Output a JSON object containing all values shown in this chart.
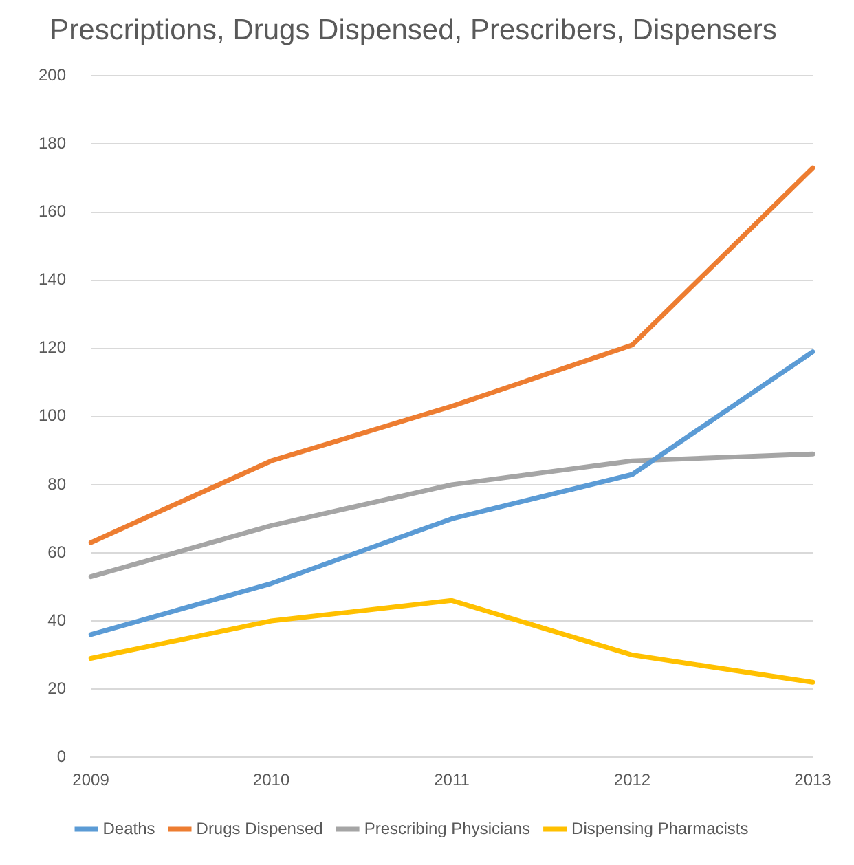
{
  "chart_data": {
    "type": "line",
    "title": "Prescriptions, Drugs Dispensed, Prescribers, Dispensers",
    "categories": [
      "2009",
      "2010",
      "2011",
      "2012",
      "2013"
    ],
    "series": [
      {
        "name": "Deaths",
        "color": "#5b9bd5",
        "values": [
          36,
          51,
          70,
          83,
          119
        ]
      },
      {
        "name": "Drugs Dispensed",
        "color": "#ed7d31",
        "values": [
          63,
          87,
          103,
          121,
          173
        ]
      },
      {
        "name": "Prescribing Physicians",
        "color": "#a5a5a5",
        "values": [
          53,
          68,
          80,
          87,
          89
        ]
      },
      {
        "name": "Dispensing Pharmacists",
        "color": "#ffc000",
        "values": [
          29,
          40,
          46,
          30,
          22
        ]
      }
    ],
    "ylim": [
      0,
      200
    ],
    "yticks": [
      0,
      20,
      40,
      60,
      80,
      100,
      120,
      140,
      160,
      180,
      200
    ],
    "grid": "y",
    "legend": "bottom",
    "marker": "none",
    "line_style": "solid"
  }
}
